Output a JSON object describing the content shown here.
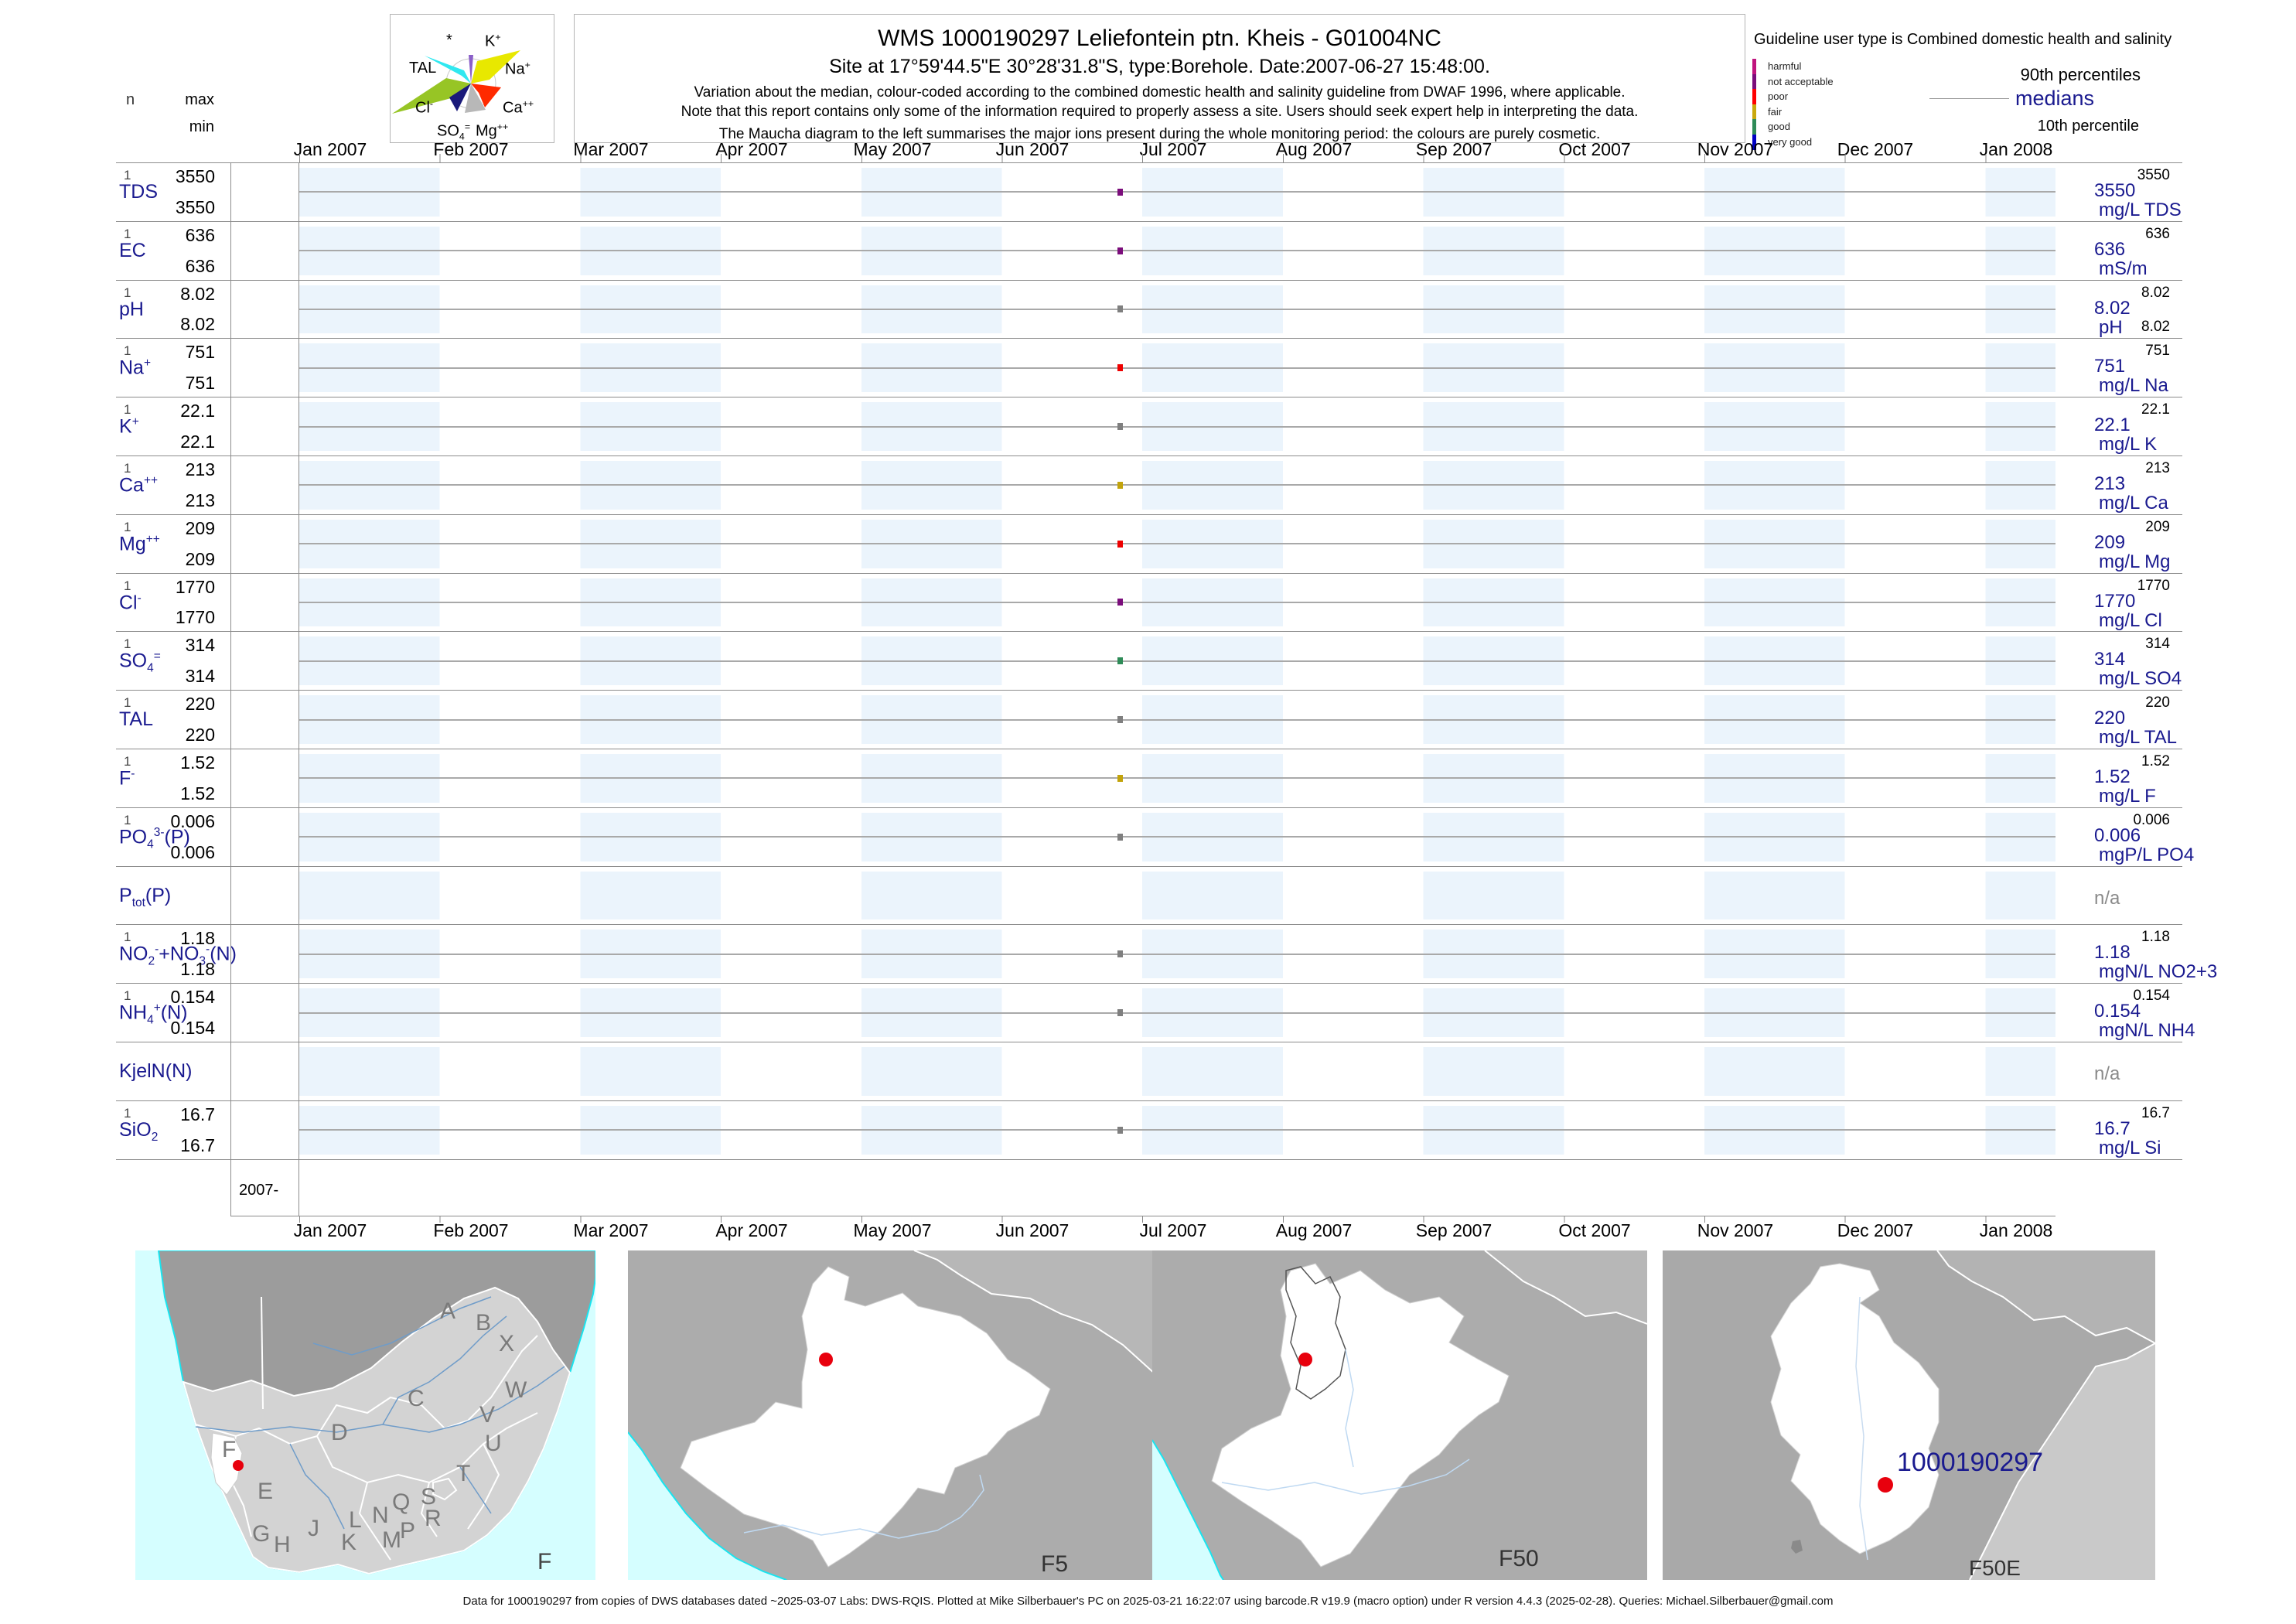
{
  "header": {
    "title": "WMS 1000190297  Leliefontein ptn. Kheis - G01004NC",
    "subtitle": "Site at 17°59'44.5\"E 30°28'31.8\"S, type:Borehole. Date:2007-06-27 15:48:00.",
    "note1": "Variation about the median,  colour-coded according to the combined domestic health and salinity guideline from DWAF 1996, where applicable.",
    "note2": "Note that this report contains only some of the information required to properly assess a site. Users should seek expert help in interpreting the data.",
    "note3": "The Maucha diagram to the left summarises the major ions present during the whole monitoring period: the colours are purely cosmetic."
  },
  "legend": {
    "guideline": "Guideline user type is Combined domestic health and salinity",
    "classes": [
      {
        "label": "harmful",
        "color": "#C0147E"
      },
      {
        "label": "not acceptable",
        "color": "#7B0D7B"
      },
      {
        "label": "poor",
        "color": "#FF0000"
      },
      {
        "label": "fair",
        "color": "#C9A80D"
      },
      {
        "label": "good",
        "color": "#2E8B57"
      },
      {
        "label": "very good",
        "color": "#0000C3"
      }
    ],
    "p90": "90th percentiles",
    "medians": "medians",
    "p10": "10th percentile"
  },
  "stats_header": {
    "n": "n",
    "max": "max",
    "min": "min"
  },
  "maucha": {
    "labels": {
      "star": "*",
      "k": "K<sup>+</sup>",
      "tal": "TAL",
      "na": "Na<sup>+</sup>",
      "cl": "Cl<sup>-</sup>",
      "ca": "Ca<sup>++</sup>",
      "so4": "SO<sub>4</sub><sup>=</sup>",
      "mg": "Mg<sup>++</sup>"
    }
  },
  "months": [
    "Jan 2007",
    "Feb 2007",
    "Mar 2007",
    "Apr 2007",
    "May 2007",
    "Jun 2007",
    "Jul 2007",
    "Aug 2007",
    "Sep 2007",
    "Oct 2007",
    "Nov 2007",
    "Dec 2007",
    "Jan 2008"
  ],
  "axis": {
    "period_label": "2007-"
  },
  "rows": [
    {
      "label_html": "TDS",
      "n": "1",
      "max": "3550",
      "min": "3550",
      "p90": "3550",
      "med": "3550",
      "unit": "mg/L TDS",
      "p10": "",
      "na": "",
      "point": "#7B0D7B",
      "line": "#A9A9A9"
    },
    {
      "label_html": "EC",
      "n": "1",
      "max": "636",
      "min": "636",
      "p90": "636",
      "med": "636",
      "unit": "mS/m",
      "p10": "",
      "na": "",
      "point": "#7B0D7B",
      "line": "#A9A9A9"
    },
    {
      "label_html": "pH",
      "n": "1",
      "max": "8.02",
      "min": "8.02",
      "p90": "8.02",
      "med": "8.02",
      "unit": "pH",
      "p10": "8.02",
      "na": "",
      "point": "#7F7F7F",
      "line": "#A9A9A9"
    },
    {
      "label_html": "Na<sup>+</sup>",
      "n": "1",
      "max": "751",
      "min": "751",
      "p90": "751",
      "med": "751",
      "unit": "mg/L Na",
      "p10": "",
      "na": "",
      "point": "#EE0000",
      "line": "#A9A9A9"
    },
    {
      "label_html": "K<sup>+</sup>",
      "n": "1",
      "max": "22.1",
      "min": "22.1",
      "p90": "22.1",
      "med": "22.1",
      "unit": "mg/L K",
      "p10": "",
      "na": "",
      "point": "#7F7F7F",
      "line": "#A9A9A9"
    },
    {
      "label_html": "Ca<sup>++</sup>",
      "n": "1",
      "max": "213",
      "min": "213",
      "p90": "213",
      "med": "213",
      "unit": "mg/L Ca",
      "p10": "",
      "na": "",
      "point": "#C2A30B",
      "line": "#A9A9A9"
    },
    {
      "label_html": "Mg<sup>++</sup>",
      "n": "1",
      "max": "209",
      "min": "209",
      "p90": "209",
      "med": "209",
      "unit": "mg/L Mg",
      "p10": "",
      "na": "",
      "point": "#EE0000",
      "line": "#A9A9A9"
    },
    {
      "label_html": "Cl<sup>-</sup>",
      "n": "1",
      "max": "1770",
      "min": "1770",
      "p90": "1770",
      "med": "1770",
      "unit": "mg/L Cl",
      "p10": "",
      "na": "",
      "point": "#7B0D7B",
      "line": "#A9A9A9"
    },
    {
      "label_html": "SO<sub>4</sub><sup>=</sup>",
      "n": "1",
      "max": "314",
      "min": "314",
      "p90": "314",
      "med": "314",
      "unit": "mg/L SO4",
      "p10": "",
      "na": "",
      "point": "#2E8B57",
      "line": "#A9A9A9"
    },
    {
      "label_html": "TAL",
      "n": "1",
      "max": "220",
      "min": "220",
      "p90": "220",
      "med": "220",
      "unit": "mg/L TAL",
      "p10": "",
      "na": "",
      "point": "#7F7F7F",
      "line": "#A9A9A9"
    },
    {
      "label_html": "F<sup>-</sup>",
      "n": "1",
      "max": "1.52",
      "min": "1.52",
      "p90": "1.52",
      "med": "1.52",
      "unit": "mg/L F",
      "p10": "",
      "na": "",
      "point": "#C2A30B",
      "line": "#A9A9A9"
    },
    {
      "label_html": "PO<sub>4</sub><sup>3-</sup>(P)",
      "n": "1",
      "max": "0.006",
      "min": "0.006",
      "p90": "0.006",
      "med": "0.006",
      "unit": "mgP/L PO4",
      "p10": "",
      "na": "",
      "point": "#7F7F7F",
      "line": "#A9A9A9"
    },
    {
      "label_html": "P<sub>tot</sub>(P)",
      "n": "",
      "max": "",
      "min": "",
      "p90": "",
      "med": "",
      "unit": "",
      "p10": "",
      "na": "n/a",
      "point": null,
      "line": null
    },
    {
      "label_html": "NO<sub>2</sub><sup>-</sup>+NO<sub>3</sub><sup>-</sup>(N)",
      "n": "1",
      "max": "1.18",
      "min": "1.18",
      "p90": "1.18",
      "med": "1.18",
      "unit": "mgN/L NO2+3",
      "p10": "",
      "na": "",
      "point": "#7F7F7F",
      "line": "#A9A9A9"
    },
    {
      "label_html": "NH<sub>4</sub><sup>+</sup>(N)",
      "n": "1",
      "max": "0.154",
      "min": "0.154",
      "p90": "0.154",
      "med": "0.154",
      "unit": "mgN/L NH4",
      "p10": "",
      "na": "",
      "point": "#7F7F7F",
      "line": "#A9A9A9"
    },
    {
      "label_html": "KjelN(N)",
      "n": "",
      "max": "",
      "min": "",
      "p90": "",
      "med": "",
      "unit": "",
      "p10": "",
      "na": "n/a",
      "point": null,
      "line": null
    },
    {
      "label_html": "SiO<sub>2</sub>",
      "n": "1",
      "max": "16.7",
      "min": "16.7",
      "p90": "16.7",
      "med": "16.7",
      "unit": "mg/L Si",
      "p10": "",
      "na": "",
      "point": "#7F7F7F",
      "line": "#A9A9A9"
    }
  ],
  "maps": {
    "overview": {
      "label": "F",
      "letters": [
        "A",
        "B",
        "X",
        "C",
        "W",
        "V",
        "U",
        "D",
        "T",
        "S",
        "Q",
        "R",
        "P",
        "N",
        "L",
        "M",
        "K",
        "J",
        "H",
        "G",
        "E",
        "F"
      ]
    },
    "f5": {
      "label": "F5"
    },
    "f50": {
      "label": "F50"
    },
    "f50e": {
      "label": "F50E",
      "site": "1000190297"
    }
  },
  "footer": "Data for 1000190297 from copies of DWS databases dated ~2025-03-07 Labs: DWS-RQIS. Plotted at Mike Silberbauer's PC on 2025-03-21 16:22:07 using barcode.R v19.9 (macro option) under R version 4.4.3 (2025-02-28). Queries: Michael.Silberbauer@gmail.com",
  "chart_data": {
    "type": "scatter",
    "title": "WMS 1000190297 Leliefontein ptn. Kheis - G01004NC",
    "xlabel": "",
    "ylabel": "",
    "x_axis_labels": [
      "Jan 2007",
      "Feb 2007",
      "Mar 2007",
      "Apr 2007",
      "May 2007",
      "Jun 2007",
      "Jul 2007",
      "Aug 2007",
      "Sep 2007",
      "Oct 2007",
      "Nov 2007",
      "Dec 2007",
      "Jan 2008"
    ],
    "sample_date": "2007-06-27",
    "legend_position": "top-right",
    "grid": "alternating monthly bands",
    "series": [
      {
        "name": "TDS",
        "unit": "mg/L TDS",
        "n": 1,
        "x": "2007-06-27",
        "value": 3550,
        "max": 3550,
        "min": 3550,
        "median": 3550,
        "p90": 3550,
        "quality_class": "not acceptable"
      },
      {
        "name": "EC",
        "unit": "mS/m",
        "n": 1,
        "x": "2007-06-27",
        "value": 636,
        "max": 636,
        "min": 636,
        "median": 636,
        "p90": 636,
        "quality_class": "not acceptable"
      },
      {
        "name": "pH",
        "unit": "pH",
        "n": 1,
        "x": "2007-06-27",
        "value": 8.02,
        "max": 8.02,
        "min": 8.02,
        "median": 8.02,
        "p90": 8.02,
        "p10": 8.02,
        "quality_class": "unclassified"
      },
      {
        "name": "Na+",
        "unit": "mg/L Na",
        "n": 1,
        "x": "2007-06-27",
        "value": 751,
        "max": 751,
        "min": 751,
        "median": 751,
        "p90": 751,
        "quality_class": "poor"
      },
      {
        "name": "K+",
        "unit": "mg/L K",
        "n": 1,
        "x": "2007-06-27",
        "value": 22.1,
        "max": 22.1,
        "min": 22.1,
        "median": 22.1,
        "p90": 22.1,
        "quality_class": "unclassified"
      },
      {
        "name": "Ca++",
        "unit": "mg/L Ca",
        "n": 1,
        "x": "2007-06-27",
        "value": 213,
        "max": 213,
        "min": 213,
        "median": 213,
        "p90": 213,
        "quality_class": "fair"
      },
      {
        "name": "Mg++",
        "unit": "mg/L Mg",
        "n": 1,
        "x": "2007-06-27",
        "value": 209,
        "max": 209,
        "min": 209,
        "median": 209,
        "p90": 209,
        "quality_class": "poor"
      },
      {
        "name": "Cl-",
        "unit": "mg/L Cl",
        "n": 1,
        "x": "2007-06-27",
        "value": 1770,
        "max": 1770,
        "min": 1770,
        "median": 1770,
        "p90": 1770,
        "quality_class": "not acceptable"
      },
      {
        "name": "SO4=",
        "unit": "mg/L SO4",
        "n": 1,
        "x": "2007-06-27",
        "value": 314,
        "max": 314,
        "min": 314,
        "median": 314,
        "p90": 314,
        "quality_class": "good"
      },
      {
        "name": "TAL",
        "unit": "mg/L TAL",
        "n": 1,
        "x": "2007-06-27",
        "value": 220,
        "max": 220,
        "min": 220,
        "median": 220,
        "p90": 220,
        "quality_class": "unclassified"
      },
      {
        "name": "F-",
        "unit": "mg/L F",
        "n": 1,
        "x": "2007-06-27",
        "value": 1.52,
        "max": 1.52,
        "min": 1.52,
        "median": 1.52,
        "p90": 1.52,
        "quality_class": "fair"
      },
      {
        "name": "PO43-(P)",
        "unit": "mgP/L PO4",
        "n": 1,
        "x": "2007-06-27",
        "value": 0.006,
        "max": 0.006,
        "min": 0.006,
        "median": 0.006,
        "p90": 0.006,
        "quality_class": "unclassified"
      },
      {
        "name": "Ptot(P)",
        "unit": "",
        "n": 0,
        "value": null,
        "note": "n/a"
      },
      {
        "name": "NO2-+NO3-(N)",
        "unit": "mgN/L NO2+3",
        "n": 1,
        "x": "2007-06-27",
        "value": 1.18,
        "max": 1.18,
        "min": 1.18,
        "median": 1.18,
        "p90": 1.18,
        "quality_class": "unclassified"
      },
      {
        "name": "NH4+(N)",
        "unit": "mgN/L NH4",
        "n": 1,
        "x": "2007-06-27",
        "value": 0.154,
        "max": 0.154,
        "min": 0.154,
        "median": 0.154,
        "p90": 0.154,
        "quality_class": "unclassified"
      },
      {
        "name": "KjelN(N)",
        "unit": "",
        "n": 0,
        "value": null,
        "note": "n/a"
      },
      {
        "name": "SiO2",
        "unit": "mg/L Si",
        "n": 1,
        "x": "2007-06-27",
        "value": 16.7,
        "max": 16.7,
        "min": 16.7,
        "median": 16.7,
        "p90": 16.7,
        "quality_class": "unclassified"
      }
    ]
  }
}
